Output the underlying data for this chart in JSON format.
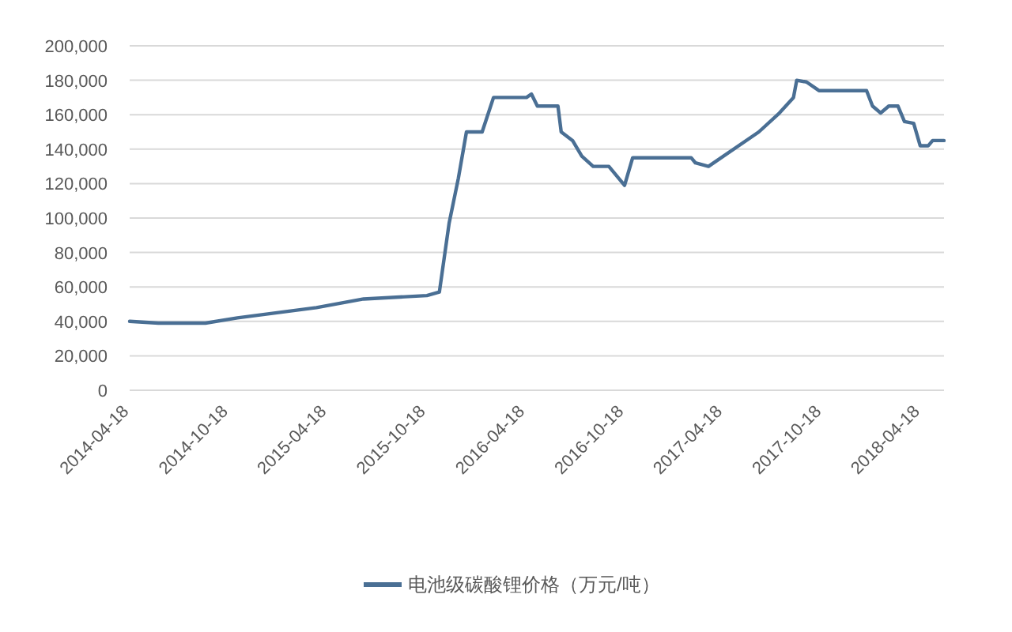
{
  "chart_data": {
    "type": "line",
    "legend": "bottom",
    "grid": "y",
    "line_style": "solid",
    "marker": "none",
    "xlim": [
      "2014-04-18",
      "2018-05-31"
    ],
    "xticks": [
      "2014-04-18",
      "2014-10-18",
      "2015-04-18",
      "2015-10-18",
      "2016-04-18",
      "2016-10-18",
      "2017-04-18",
      "2017-10-18",
      "2018-04-18"
    ],
    "ylim": [
      0,
      200000
    ],
    "yticks": [
      0,
      {
        "value": 20000,
        "label": "20,000"
      },
      {
        "value": 40000,
        "label": "40,000"
      },
      {
        "value": 60000,
        "label": "60,000"
      },
      {
        "value": 80000,
        "label": "80,000"
      },
      {
        "value": 100000,
        "label": "100,000"
      },
      {
        "value": 120000,
        "label": "120,000"
      },
      {
        "value": 140000,
        "label": "140,000"
      },
      {
        "value": 160000,
        "label": "160,000"
      },
      {
        "value": 180000,
        "label": "180,000"
      },
      {
        "value": 200000,
        "label": "200,000"
      }
    ],
    "x": [
      "2014-04-18",
      "2014-06-10",
      "2014-09-05",
      "2014-11-03",
      "2015-03-29",
      "2015-06-24",
      "2015-10-19",
      "2015-11-11",
      "2015-11-29",
      "2015-12-16",
      "2015-12-31",
      "2016-01-29",
      "2016-02-19",
      "2016-04-20",
      "2016-04-29",
      "2016-05-10",
      "2016-06-17",
      "2016-06-23",
      "2016-07-14",
      "2016-07-31",
      "2016-08-21",
      "2016-09-19",
      "2016-10-18",
      "2016-11-02",
      "2017-02-18",
      "2017-02-26",
      "2017-03-22",
      "2017-06-23",
      "2017-07-31",
      "2017-08-26",
      "2017-09-01",
      "2017-09-19",
      "2017-10-12",
      "2018-01-08",
      "2018-01-19",
      "2018-02-03",
      "2018-02-18",
      "2018-03-07",
      "2018-03-19",
      "2018-04-05",
      "2018-04-17",
      "2018-05-02",
      "2018-05-10",
      "2018-05-31"
    ],
    "series": [
      {
        "name": "电池级碳酸锂价格（万元/吨）",
        "color": "#4a6f94",
        "values": [
          40000,
          39000,
          39000,
          42000,
          48000,
          53000,
          55000,
          57000,
          97000,
          123000,
          150000,
          150000,
          170000,
          170000,
          172000,
          165000,
          165000,
          150000,
          145000,
          136000,
          130000,
          130000,
          119000,
          135000,
          135000,
          132000,
          130000,
          150000,
          161000,
          170000,
          180000,
          179000,
          174000,
          174000,
          165000,
          161000,
          165000,
          165000,
          156000,
          155000,
          142000,
          142000,
          145000,
          145000
        ]
      }
    ]
  }
}
